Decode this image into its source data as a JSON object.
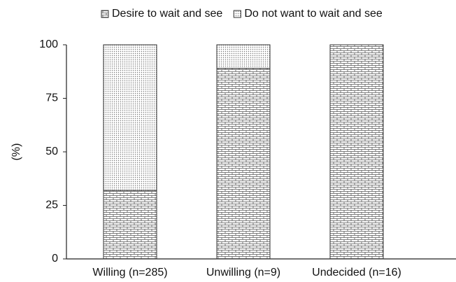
{
  "chart_data": {
    "type": "stacked_bar",
    "y_label": "(%)",
    "categories": [
      "Willing (n=285)",
      "Unwilling (n=9)",
      "Undecided (n=16)"
    ],
    "series": [
      {
        "name": "Desire to wait and see",
        "pattern": "brick",
        "color": "#333333",
        "values": [
          32,
          89,
          100
        ]
      },
      {
        "name": "Do not want to wait and see",
        "pattern": "dots",
        "color": "#333333",
        "values": [
          68,
          11,
          0
        ]
      }
    ],
    "ylim": [
      0,
      100
    ],
    "yticks": [
      0,
      25,
      50,
      75,
      100
    ],
    "legend": "top"
  }
}
